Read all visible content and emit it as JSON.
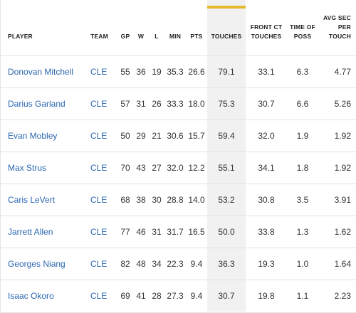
{
  "headers": {
    "player": "PLAYER",
    "team": "TEAM",
    "gp": "GP",
    "w": "W",
    "l": "L",
    "min": "MIN",
    "pts": "PTS",
    "touches": "TOUCHES",
    "front_ct_touches": "FRONT CT TOUCHES",
    "time_of_poss": "TIME OF POSS",
    "avg_sec_per_touch": "AVG SEC PER TOUCH"
  },
  "rows": [
    {
      "player": "Donovan Mitchell",
      "team": "CLE",
      "gp": "55",
      "w": "36",
      "l": "19",
      "min": "35.3",
      "pts": "26.6",
      "touches": "79.1",
      "front": "33.1",
      "poss": "6.3",
      "avg": "4.77"
    },
    {
      "player": "Darius Garland",
      "team": "CLE",
      "gp": "57",
      "w": "31",
      "l": "26",
      "min": "33.3",
      "pts": "18.0",
      "touches": "75.3",
      "front": "30.7",
      "poss": "6.6",
      "avg": "5.26"
    },
    {
      "player": "Evan Mobley",
      "team": "CLE",
      "gp": "50",
      "w": "29",
      "l": "21",
      "min": "30.6",
      "pts": "15.7",
      "touches": "59.4",
      "front": "32.0",
      "poss": "1.9",
      "avg": "1.92"
    },
    {
      "player": "Max Strus",
      "team": "CLE",
      "gp": "70",
      "w": "43",
      "l": "27",
      "min": "32.0",
      "pts": "12.2",
      "touches": "55.1",
      "front": "34.1",
      "poss": "1.8",
      "avg": "1.92"
    },
    {
      "player": "Caris LeVert",
      "team": "CLE",
      "gp": "68",
      "w": "38",
      "l": "30",
      "min": "28.8",
      "pts": "14.0",
      "touches": "53.2",
      "front": "30.8",
      "poss": "3.5",
      "avg": "3.91"
    },
    {
      "player": "Jarrett Allen",
      "team": "CLE",
      "gp": "77",
      "w": "46",
      "l": "31",
      "min": "31.7",
      "pts": "16.5",
      "touches": "50.0",
      "front": "33.8",
      "poss": "1.3",
      "avg": "1.62"
    },
    {
      "player": "Georges Niang",
      "team": "CLE",
      "gp": "82",
      "w": "48",
      "l": "34",
      "min": "22.3",
      "pts": "9.4",
      "touches": "36.3",
      "front": "19.3",
      "poss": "1.0",
      "avg": "1.64"
    },
    {
      "player": "Isaac Okoro",
      "team": "CLE",
      "gp": "69",
      "w": "41",
      "l": "28",
      "min": "27.3",
      "pts": "9.4",
      "touches": "30.7",
      "front": "19.8",
      "poss": "1.1",
      "avg": "2.23"
    }
  ],
  "colors": {
    "link": "#2a67b0",
    "sort_accent": "#e5b92e",
    "sorted_bg": "#f1f1f1"
  }
}
